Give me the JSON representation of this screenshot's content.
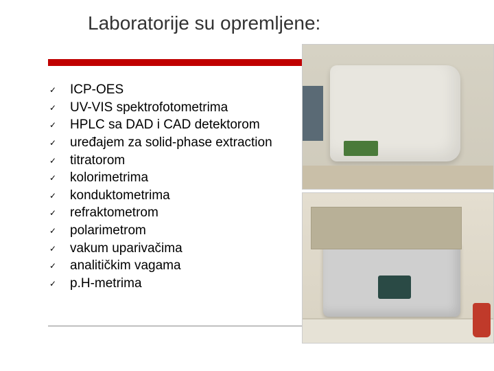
{
  "title": "Laboratorije su opremljene:",
  "accent_bar_color": "#c00000",
  "list": {
    "items": [
      "ICP-OES",
      "UV-VIS spektrofotometrima",
      "HPLC sa DAD i CAD detektorom",
      "uređajem za solid-phase extraction",
      "titratorom",
      "kolorimetrima",
      "konduktometrima",
      "refraktometrom",
      "polarimetrom",
      "vakum uparivačima",
      "analitičkim vagama",
      "p.H-metrima"
    ],
    "bullet_glyph": "✓"
  },
  "images": [
    {
      "name": "icp-oes-instrument-photo"
    },
    {
      "name": "lab-analyzer-instrument-photo"
    }
  ]
}
